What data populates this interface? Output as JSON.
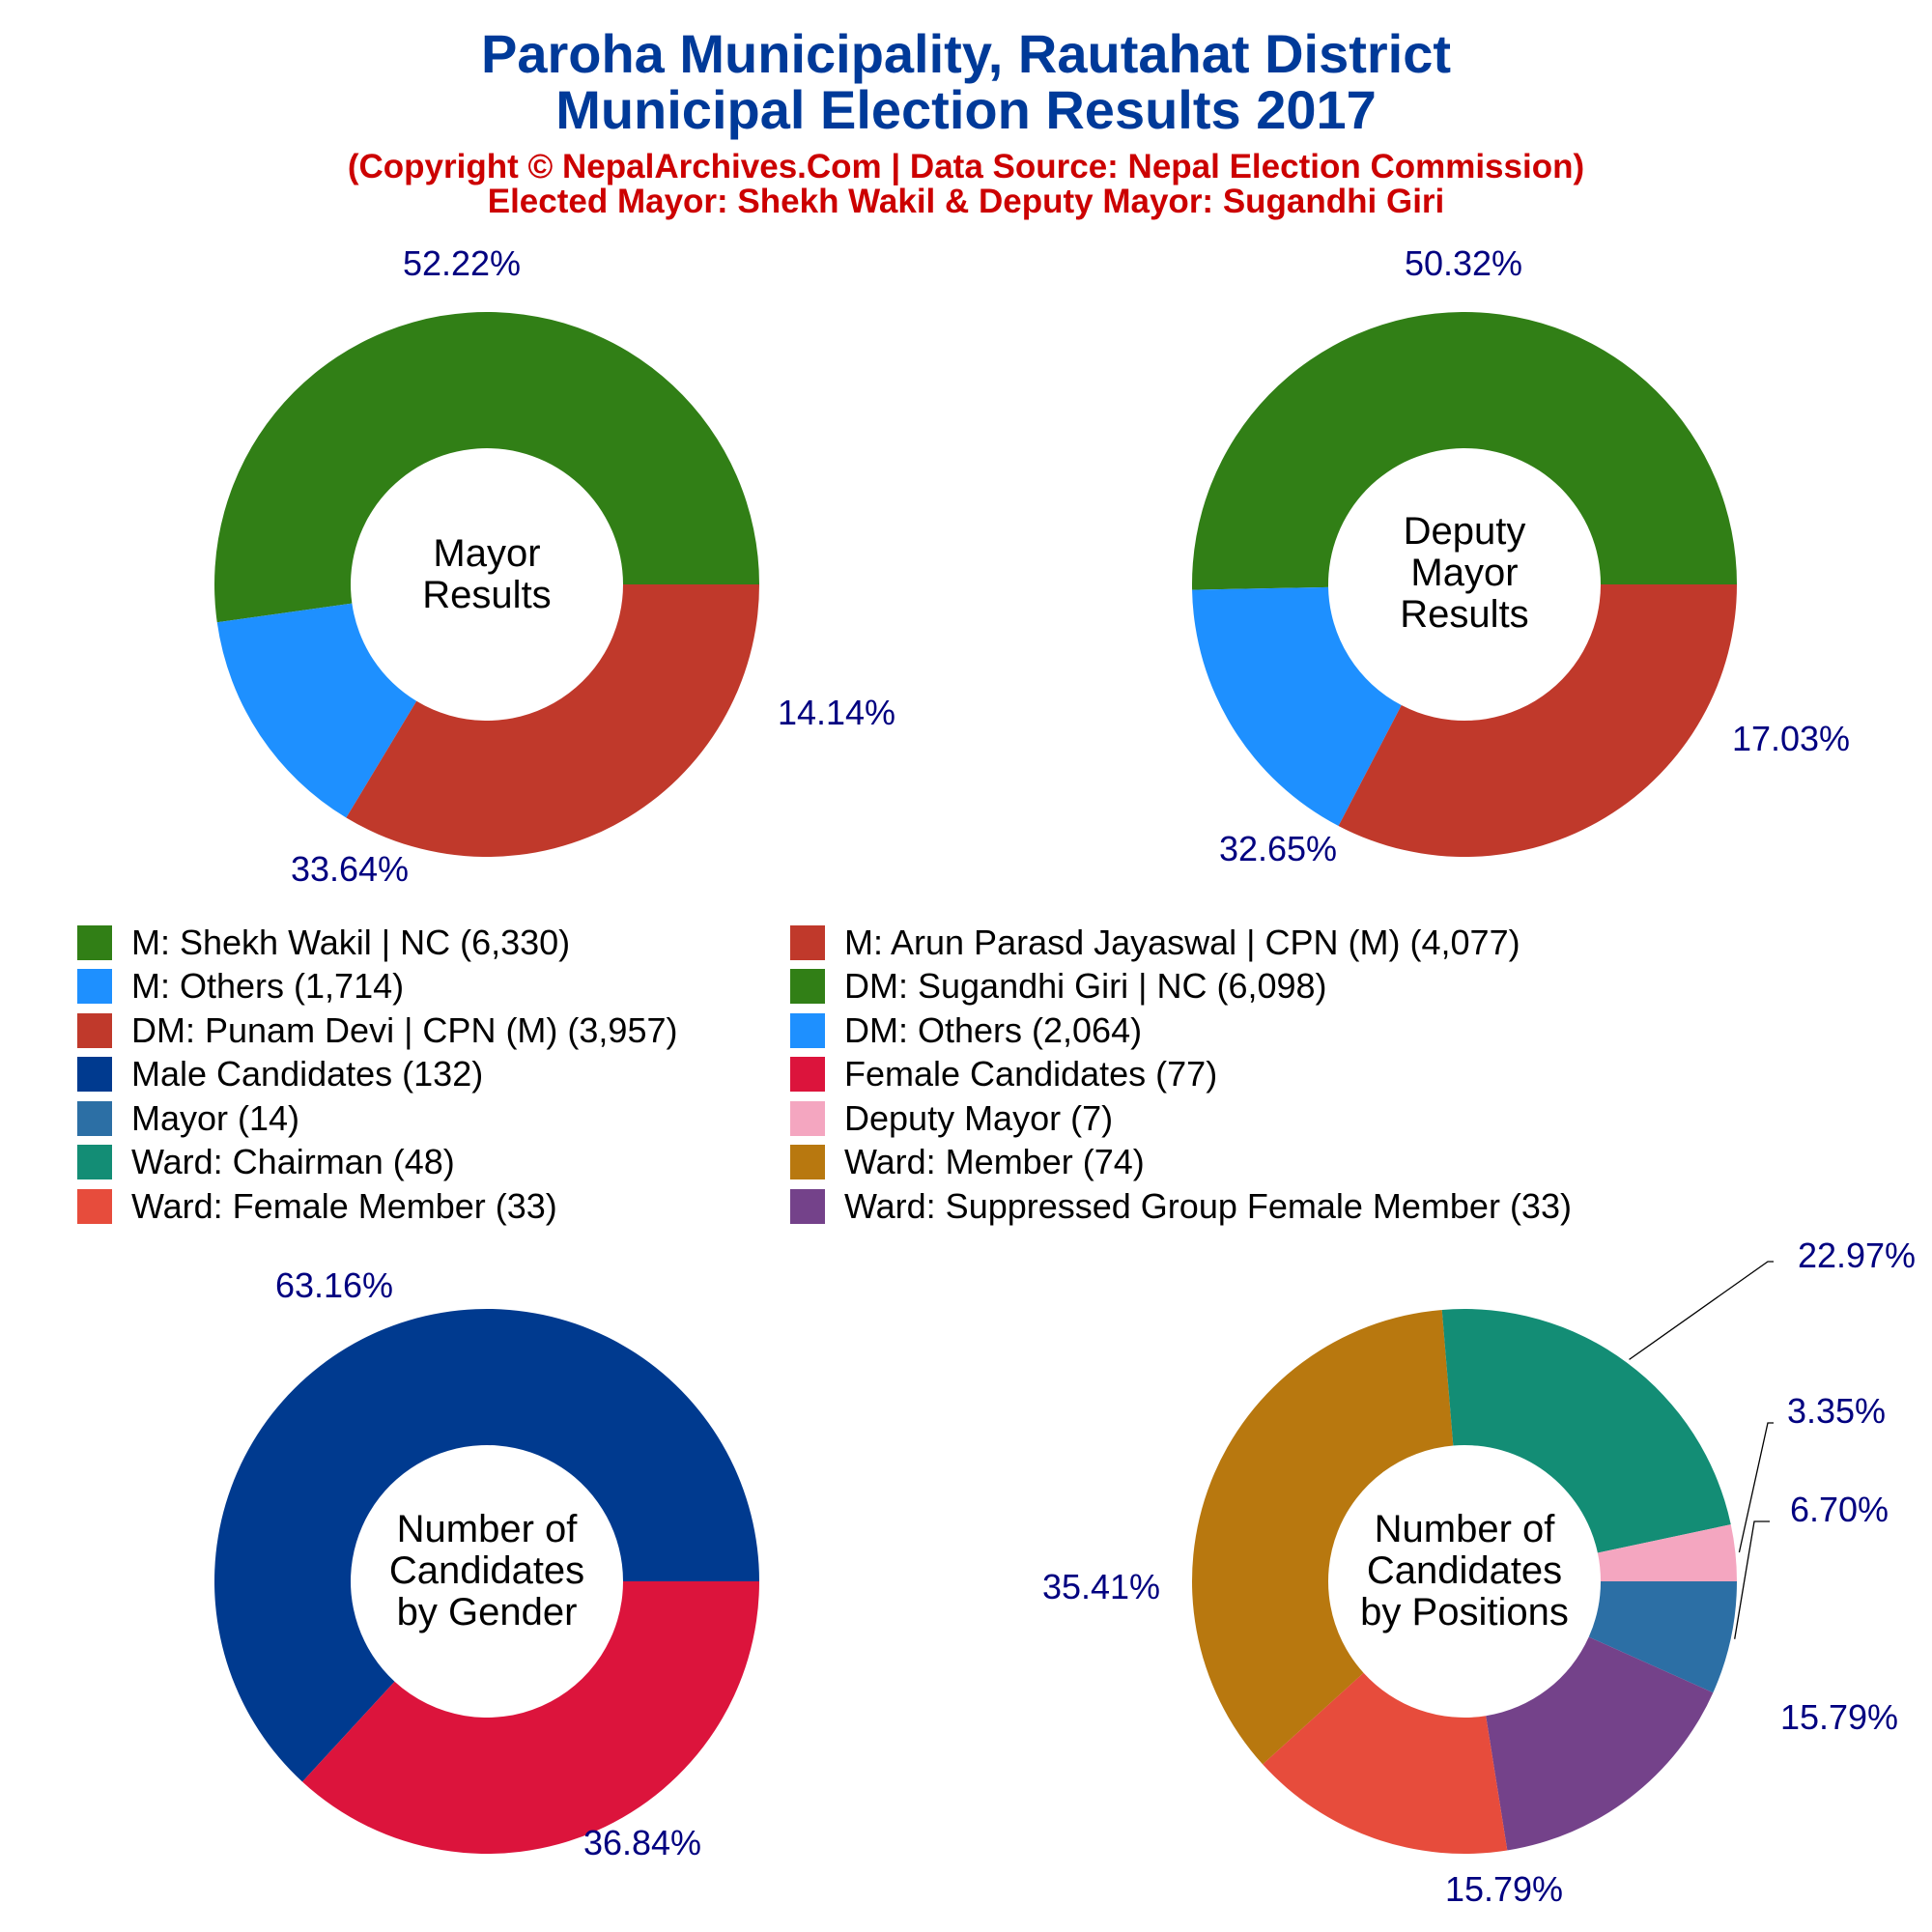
{
  "title_line1": "Paroha Municipality, Rautahat District",
  "title_line2": "Municipal Election Results 2017",
  "subtitle_line1": "(Copyright © NepalArchives.Com | Data Source: Nepal Election Commission)",
  "subtitle_line2": "Elected Mayor: Shekh Wakil & Deputy Mayor: Sugandhi Giri",
  "chart_data": [
    {
      "type": "pie",
      "center_label": [
        "Mayor",
        "Results"
      ],
      "slices": [
        {
          "label": "M: Shekh Wakil | NC",
          "value": 6330,
          "percent_label": "52.22%",
          "color": "#317f16"
        },
        {
          "label": "M: Others",
          "value": 1714,
          "percent_label": "14.14%",
          "color": "#1e90ff"
        },
        {
          "label": "M: Arun Parasd Jayaswal | CPN (M)",
          "value": 4077,
          "percent_label": "33.64%",
          "color": "#c0392b"
        }
      ]
    },
    {
      "type": "pie",
      "center_label": [
        "Deputy",
        "Mayor",
        "Results"
      ],
      "slices": [
        {
          "label": "DM: Sugandhi Giri | NC",
          "value": 6098,
          "percent_label": "50.32%",
          "color": "#317f16"
        },
        {
          "label": "DM: Others",
          "value": 2064,
          "percent_label": "17.03%",
          "color": "#1e90ff"
        },
        {
          "label": "DM: Punam Devi | CPN (M)",
          "value": 3957,
          "percent_label": "32.65%",
          "color": "#c0392b"
        }
      ]
    },
    {
      "type": "pie",
      "center_label": [
        "Number of",
        "Candidates",
        "by Gender"
      ],
      "slices": [
        {
          "label": "Male Candidates",
          "value": 132,
          "percent_label": "63.16%",
          "color": "#003a8f"
        },
        {
          "label": "Female Candidates",
          "value": 77,
          "percent_label": "36.84%",
          "color": "#dc143c"
        }
      ]
    },
    {
      "type": "pie",
      "center_label": [
        "Number of",
        "Candidates",
        "by Positions"
      ],
      "slices": [
        {
          "label": "Mayor",
          "value": 14,
          "percent_label": "6.70%",
          "color": "#2c6fa5"
        },
        {
          "label": "Ward: Suppressed Group Female Member",
          "value": 33,
          "percent_label": "15.79%",
          "color": "#74428a"
        },
        {
          "label": "Ward: Female Member",
          "value": 33,
          "percent_label": "15.79%",
          "color": "#e74c3c"
        },
        {
          "label": "Ward: Member",
          "value": 74,
          "percent_label": "35.41%",
          "color": "#b8780f"
        },
        {
          "label": "Ward: Chairman",
          "value": 48,
          "percent_label": "22.97%",
          "color": "#138d75"
        },
        {
          "label": "Deputy Mayor",
          "value": 7,
          "percent_label": "3.35%",
          "color": "#f4a6c0"
        }
      ]
    }
  ],
  "legend": [
    {
      "label": "M: Shekh Wakil | NC (6,330)",
      "color": "#317f16"
    },
    {
      "label": "M: Arun Parasd Jayaswal | CPN (M) (4,077)",
      "color": "#c0392b"
    },
    {
      "label": "M: Others (1,714)",
      "color": "#1e90ff"
    },
    {
      "label": "DM: Sugandhi Giri | NC (6,098)",
      "color": "#317f16"
    },
    {
      "label": "DM: Punam Devi | CPN (M) (3,957)",
      "color": "#c0392b"
    },
    {
      "label": "DM: Others (2,064)",
      "color": "#1e90ff"
    },
    {
      "label": "Male Candidates (132)",
      "color": "#003a8f"
    },
    {
      "label": "Female Candidates (77)",
      "color": "#dc143c"
    },
    {
      "label": "Mayor (14)",
      "color": "#2c6fa5"
    },
    {
      "label": "Deputy Mayor (7)",
      "color": "#f4a6c0"
    },
    {
      "label": "Ward: Chairman (48)",
      "color": "#138d75"
    },
    {
      "label": "Ward: Member (74)",
      "color": "#b8780f"
    },
    {
      "label": "Ward: Female Member (33)",
      "color": "#e74c3c"
    },
    {
      "label": "Ward: Suppressed Group Female Member (33)",
      "color": "#74428a"
    }
  ]
}
